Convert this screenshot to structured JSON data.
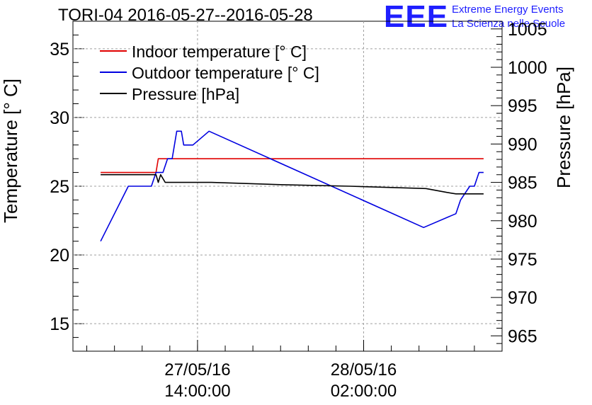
{
  "header": {
    "title": "TORI-04 2016-05-27--2016-05-28",
    "logo_text": "EEE",
    "brand_line1": "Extreme Energy Events",
    "brand_line2": "La Scienza nelle Scuole"
  },
  "colors": {
    "indoor": "#e00000",
    "outdoor": "#0000e0",
    "pressure": "#000000",
    "brand": "#1f1fff",
    "grid": "#a0a0a0"
  },
  "chart_data": {
    "type": "line",
    "title": "TORI-04 2016-05-27--2016-05-28",
    "ylabel": "Temperature [° C]",
    "y2label": "Pressure [hPa]",
    "ylim": [
      13,
      37
    ],
    "y2lim": [
      963,
      1006
    ],
    "yticks": [
      15,
      20,
      25,
      30,
      35
    ],
    "y2ticks": [
      965,
      970,
      975,
      980,
      985,
      990,
      995,
      1000,
      1005
    ],
    "xlim": [
      "2016-05-27 05:00",
      "2016-05-28 12:00"
    ],
    "xticks": [
      {
        "x": "2016-05-27 14:00",
        "line1": "27/05/16",
        "line2": "14:00:00"
      },
      {
        "x": "2016-05-28 02:00",
        "line1": "28/05/16",
        "line2": "02:00:00"
      }
    ],
    "grid": true,
    "legend_position": "top-left",
    "series": [
      {
        "name": "Indoor temperature [° C]",
        "axis": "left",
        "color": "#e00000",
        "points": [
          [
            "2016-05-27 07:00",
            26
          ],
          [
            "2016-05-27 11:00",
            26
          ],
          [
            "2016-05-27 11:10",
            27
          ],
          [
            "2016-05-28 10:40",
            27
          ]
        ]
      },
      {
        "name": "Outdoor temperature [° C]",
        "axis": "left",
        "color": "#0000e0",
        "points": [
          [
            "2016-05-27 07:00",
            21
          ],
          [
            "2016-05-27 09:00",
            25
          ],
          [
            "2016-05-27 10:40",
            25
          ],
          [
            "2016-05-27 11:00",
            26
          ],
          [
            "2016-05-27 11:30",
            26
          ],
          [
            "2016-05-27 11:50",
            27
          ],
          [
            "2016-05-27 12:10",
            27
          ],
          [
            "2016-05-27 12:30",
            29
          ],
          [
            "2016-05-27 12:50",
            29
          ],
          [
            "2016-05-27 13:00",
            28
          ],
          [
            "2016-05-27 13:40",
            28
          ],
          [
            "2016-05-27 14:50",
            29
          ],
          [
            "2016-05-28 06:20",
            22
          ],
          [
            "2016-05-28 08:40",
            23
          ],
          [
            "2016-05-28 09:00",
            24
          ],
          [
            "2016-05-28 09:40",
            25
          ],
          [
            "2016-05-28 10:00",
            25
          ],
          [
            "2016-05-28 10:20",
            26
          ],
          [
            "2016-05-28 10:40",
            26
          ]
        ]
      },
      {
        "name": "Pressure [hPa]",
        "axis": "right",
        "color": "#000000",
        "points": [
          [
            "2016-05-27 07:00",
            986.0
          ],
          [
            "2016-05-27 11:00",
            986.0
          ],
          [
            "2016-05-27 11:10",
            985.0
          ],
          [
            "2016-05-27 11:20",
            986.0
          ],
          [
            "2016-05-27 11:40",
            985.0
          ],
          [
            "2016-05-27 15:00",
            985.0
          ],
          [
            "2016-05-27 20:00",
            984.7
          ],
          [
            "2016-05-28 01:00",
            984.5
          ],
          [
            "2016-05-28 06:30",
            984.2
          ],
          [
            "2016-05-28 08:00",
            983.7
          ],
          [
            "2016-05-28 08:40",
            983.5
          ],
          [
            "2016-05-28 10:40",
            983.5
          ]
        ]
      }
    ]
  }
}
